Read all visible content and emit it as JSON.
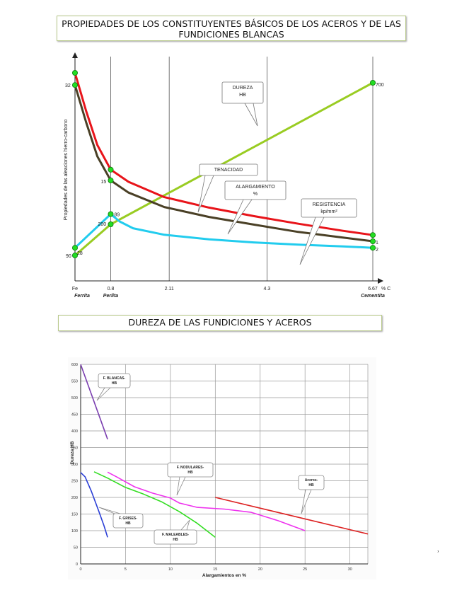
{
  "titles": {
    "top": "PROPIEDADES DE LOS CONSTITUYENTES BÁSICOS DE LOS ACEROS Y DE LAS FUNDICIONES BLANCAS",
    "bottom": "DUREZA DE LAS FUNDICIONES Y ACEROS"
  },
  "stray_mark": "˒",
  "chart_data": [
    {
      "type": "line",
      "ylabel": "Propiedades de las aleaciones hierro-carbono",
      "x_unit": "% C",
      "x_ticks": [
        {
          "value": 0,
          "label": "Fe"
        },
        {
          "value": 0.8,
          "label": "0.8"
        },
        {
          "value": 2.11,
          "label": "2.11"
        },
        {
          "value": 4.3,
          "label": "4.3"
        },
        {
          "value": 6.67,
          "label": "6.67"
        }
      ],
      "phase_labels": [
        {
          "x": 0,
          "label": "Ferrita"
        },
        {
          "x": 0.8,
          "label": "Perlita"
        },
        {
          "x": 6.67,
          "label": "Cementita"
        }
      ],
      "grid": "vertical",
      "series": [
        {
          "key": "dureza",
          "color": "#99cc22",
          "points": [
            [
              0,
              90
            ],
            [
              0.8,
              200
            ],
            [
              6.67,
              700
            ]
          ],
          "label_points": [
            {
              "x": 0,
              "text": "90"
            },
            {
              "x": 0.8,
              "text": "200"
            },
            {
              "x": 6.67,
              "text": "700"
            }
          ]
        },
        {
          "key": "tenacidad",
          "color": "#e8141a",
          "points": [
            [
              0,
              735
            ],
            [
              0.25,
              600
            ],
            [
              0.5,
              480
            ],
            [
              0.8,
              393
            ],
            [
              1.2,
              350
            ],
            [
              2.0,
              296
            ],
            [
              3.0,
              259
            ],
            [
              4.0,
              229
            ],
            [
              5.0,
              202
            ],
            [
              6.0,
              177
            ],
            [
              6.67,
              162
            ]
          ]
        },
        {
          "key": "alargamiento",
          "color": "#4a4026",
          "points": [
            [
              0,
              692
            ],
            [
              0.25,
              560
            ],
            [
              0.5,
              440
            ],
            [
              0.8,
              355
            ],
            [
              1.2,
              312
            ],
            [
              2.0,
              261
            ],
            [
              3.0,
              226
            ],
            [
              4.0,
              199
            ],
            [
              5.0,
              173
            ],
            [
              6.0,
              153
            ],
            [
              6.67,
              140
            ]
          ],
          "label_points": [
            {
              "x": 0,
              "text": "32"
            },
            {
              "x": 0.8,
              "text": "15"
            },
            {
              "x": 6.67,
              "text": "1"
            }
          ]
        },
        {
          "key": "resistencia",
          "color": "#22ccee",
          "points": [
            [
              0,
              117
            ],
            [
              0.8,
              236
            ],
            [
              1.0,
              210
            ],
            [
              1.3,
              186
            ],
            [
              2.0,
              163
            ],
            [
              3.0,
              147
            ],
            [
              4.0,
              136
            ],
            [
              5.0,
              128
            ],
            [
              6.0,
              122
            ],
            [
              6.67,
              117
            ]
          ],
          "label_points": [
            {
              "x": 0,
              "text": "28"
            },
            {
              "x": 0.8,
              "text": "89"
            },
            {
              "x": 6.67,
              "text": "2"
            }
          ]
        }
      ],
      "callouts": [
        {
          "key": "dureza",
          "lines": [
            "DUREZA",
            "HB"
          ]
        },
        {
          "key": "tenacidad",
          "lines": [
            "TENACIDAD"
          ]
        },
        {
          "key": "alargamiento",
          "lines": [
            "ALARGAMIENTO",
            "%"
          ]
        },
        {
          "key": "resistencia",
          "lines": [
            "RESISTENCIA",
            "kp/mm²"
          ]
        }
      ]
    },
    {
      "type": "line",
      "xlabel": "Alargamientos en %",
      "ylabel": "Dureza HB",
      "xlim": [
        0,
        32
      ],
      "ylim": [
        0,
        600
      ],
      "x_ticks": [
        0,
        5,
        10,
        15,
        20,
        25,
        30
      ],
      "y_ticks": [
        0,
        50,
        100,
        150,
        200,
        250,
        300,
        350,
        400,
        450,
        500,
        550,
        600
      ],
      "grid": true,
      "series": [
        {
          "name": "F. BLANCAS-HB",
          "color": "#7b3fb0",
          "points": [
            [
              0,
              600
            ],
            [
              3,
              375
            ]
          ]
        },
        {
          "name": "F. GRISES-HB",
          "color": "#2b3fd6",
          "points": [
            [
              0,
              275
            ],
            [
              0.5,
              262
            ],
            [
              1.2,
              218
            ],
            [
              2,
              160
            ],
            [
              2.6,
              115
            ],
            [
              3,
              80
            ]
          ]
        },
        {
          "name": "F. MALEABLES-HB",
          "color": "#33dd22",
          "points": [
            [
              1.5,
              277
            ],
            [
              3,
              258
            ],
            [
              5,
              230
            ],
            [
              7,
              210
            ],
            [
              9,
              187
            ],
            [
              11,
              157
            ],
            [
              13,
              122
            ],
            [
              15,
              80
            ]
          ]
        },
        {
          "name": "F. NODULARES-HB",
          "color": "#ee33ee",
          "points": [
            [
              3,
              276
            ],
            [
              4,
              262
            ],
            [
              6,
              232
            ],
            [
              8,
              213
            ],
            [
              10,
              198
            ],
            [
              11,
              183
            ],
            [
              13,
              170
            ],
            [
              16,
              165
            ],
            [
              19,
              155
            ],
            [
              22,
              130
            ],
            [
              25,
              100
            ]
          ]
        },
        {
          "name": "Aceros-HB",
          "color": "#dd2222",
          "points": [
            [
              15,
              200
            ],
            [
              32,
              90
            ]
          ]
        }
      ],
      "callouts": [
        {
          "series": 0,
          "lines": [
            "F. BLANCAS-",
            "HB"
          ]
        },
        {
          "series": 1,
          "lines": [
            "F. GRISES-",
            "HB"
          ]
        },
        {
          "series": 2,
          "lines": [
            "F. MALEABLES-",
            "HB"
          ]
        },
        {
          "series": 3,
          "lines": [
            "F. NODULARES-",
            "HB"
          ]
        },
        {
          "series": 4,
          "lines": [
            "Aceros-",
            "HB"
          ]
        }
      ]
    }
  ]
}
